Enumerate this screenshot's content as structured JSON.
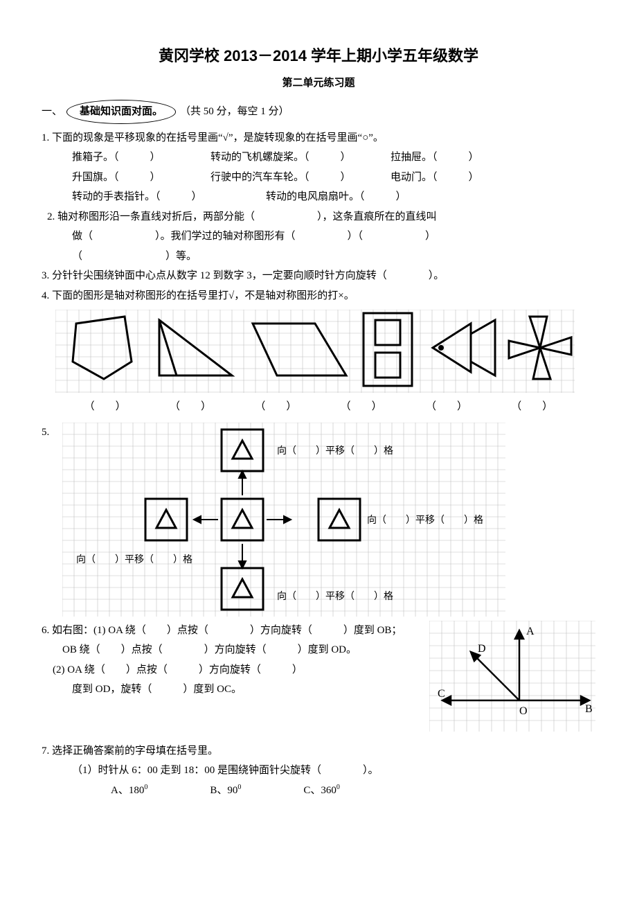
{
  "title": "黄冈学校 2013－2014 学年上期小学五年级数学",
  "subtitle": "第二单元练习题",
  "section1": {
    "num": "一、",
    "label": "基础知识面对面。",
    "score": "（共 50 分，每空 1 分）"
  },
  "q1": {
    "stem": "1. 下面的现象是平移现象的在括号里画“√”，是旋转现象的在括号里画“○”。",
    "items": [
      "推箱子。（　　　）",
      "转动的飞机螺旋桨。（　　　）",
      "拉抽屉。（　　　）",
      "升国旗。（　　　）",
      "行驶中的汽车车轮。（　　　）",
      "电动门。（　　　）",
      "转动的手表指针。（　　　）",
      "转动的电风扇扇叶。（　　　）"
    ]
  },
  "q2": {
    "l1": "2. 轴对称图形沿一条直线对折后，两部分能（　　　　　　），这条直痕所在的直线叫",
    "l2": "做（　　　　　　）。我们学过的轴对称图形有（　　　　　）（　　　　　　）",
    "l3": "（　　　　　　　　）等。"
  },
  "q3": "3. 分针针尖围绕钟面中心点从数字 12 到数字 3，一定要向顺时针方向旋转（　　　　）。",
  "q4": {
    "stem": "4. 下面的图形是轴对称图形的在括号里打√，不是轴对称图形的打×。",
    "blanks": [
      "（　　）",
      "（　　）",
      "（　　）",
      "（　　）",
      "（　　）",
      "（　　）"
    ],
    "grid_color": "#bfbfbf",
    "stroke": "#000000",
    "stroke_w": 3
  },
  "q5": {
    "num": "5.",
    "labels": {
      "top": "向（　　）平移（　　）格",
      "left": "向（　　）平移（　　）格",
      "right": "向（　　）平移（　　）格",
      "bottom": "向（　　）平移（　　）格"
    },
    "grid_color": "#bfbfbf",
    "stroke": "#000000"
  },
  "q6": {
    "l1": "6. 如右图：(1) OA 绕（　　）点按（　　　　）方向旋转（　　　）度到 OB；",
    "l2": "OB 绕（　　）点按（　　　　）方向旋转（　　　）度到 OD。",
    "l3": "(2) OA 绕（　　）点按（　　　）方向旋转（　　　）",
    "l4": "度到 OD，旋转（　　　）度到 OC。",
    "labels": {
      "A": "A",
      "B": "B",
      "C": "C",
      "D": "D",
      "O": "O"
    },
    "grid_color": "#bfbfbf"
  },
  "q7": {
    "stem": "7. 选择正确答案前的字母填在括号里。",
    "sub1": "（1）时针从 6：00 走到 18：00 是围绕钟面针尖旋转（　　　　）。",
    "opts": {
      "A": "A、180",
      "B": "B、90",
      "C": "C、360",
      "sup": "0"
    }
  }
}
